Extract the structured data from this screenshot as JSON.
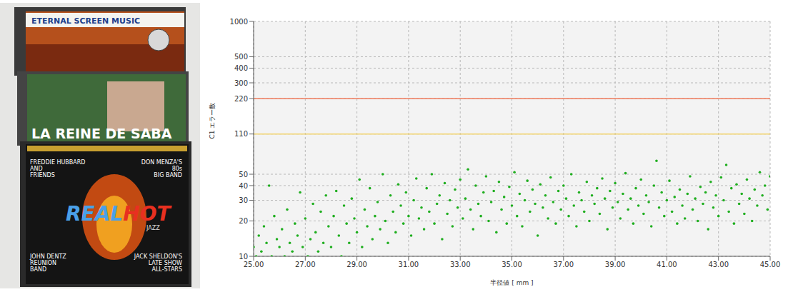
{
  "chart_data": {
    "type": "scatter",
    "xlabel": "半径値 [ mm ]",
    "ylabel": "C1 エラー数",
    "log": "y",
    "grid": true,
    "color": "#1fae1f",
    "marker": "circle",
    "xlim": [
      25,
      45
    ],
    "xticks": [
      {
        "value": 25,
        "label": "25.00"
      },
      {
        "value": 27,
        "label": "27.00"
      },
      {
        "value": 29,
        "label": "29.00"
      },
      {
        "value": 31,
        "label": "31.00"
      },
      {
        "value": 33,
        "label": "33.00"
      },
      {
        "value": 35,
        "label": "35.00"
      },
      {
        "value": 37,
        "label": "37.00"
      },
      {
        "value": 39,
        "label": "39.00"
      },
      {
        "value": 41,
        "label": "41.00"
      },
      {
        "value": 43,
        "label": "43.00"
      },
      {
        "value": 45,
        "label": "45.00"
      }
    ],
    "ylim": [
      10,
      1000
    ],
    "yticks": [
      10,
      20,
      30,
      40,
      50,
      110,
      220,
      300,
      400,
      500,
      1000
    ],
    "reference_lines": [
      {
        "value": 220,
        "color": "#f07a5a"
      },
      {
        "value": 110,
        "color": "#f2d36b"
      }
    ],
    "x": [
      25,
      25.1,
      25.2,
      25.3,
      25.4,
      25.5,
      25.6,
      25.7,
      25.8,
      25.9,
      26,
      26.1,
      26.2,
      26.3,
      26.4,
      26.5,
      26.6,
      26.7,
      26.8,
      26.9,
      27,
      27.1,
      27.2,
      27.3,
      27.4,
      27.5,
      27.6,
      27.7,
      27.8,
      27.9,
      28,
      28.1,
      28.2,
      28.3,
      28.4,
      28.5,
      28.6,
      28.7,
      28.8,
      28.9,
      29,
      29.1,
      29.2,
      29.3,
      29.4,
      29.5,
      29.6,
      29.7,
      29.8,
      29.9,
      30,
      30.1,
      30.2,
      30.3,
      30.4,
      30.5,
      30.6,
      30.7,
      30.8,
      30.9,
      31,
      31.1,
      31.2,
      31.3,
      31.4,
      31.5,
      31.6,
      31.7,
      31.8,
      31.9,
      32,
      32.1,
      32.2,
      32.3,
      32.4,
      32.5,
      32.6,
      32.7,
      32.8,
      32.9,
      33,
      33.1,
      33.2,
      33.3,
      33.4,
      33.5,
      33.6,
      33.7,
      33.8,
      33.9,
      34,
      34.1,
      34.2,
      34.3,
      34.4,
      34.5,
      34.6,
      34.7,
      34.8,
      34.9,
      35,
      35.1,
      35.2,
      35.3,
      35.4,
      35.5,
      35.6,
      35.7,
      35.8,
      35.9,
      36,
      36.1,
      36.2,
      36.3,
      36.4,
      36.5,
      36.6,
      36.7,
      36.8,
      36.9,
      37,
      37.1,
      37.2,
      37.3,
      37.4,
      37.5,
      37.6,
      37.7,
      37.8,
      37.9,
      38,
      38.1,
      38.2,
      38.3,
      38.4,
      38.5,
      38.6,
      38.7,
      38.8,
      38.9,
      39,
      39.1,
      39.2,
      39.3,
      39.4,
      39.5,
      39.6,
      39.7,
      39.8,
      39.9,
      40,
      40.1,
      40.2,
      40.3,
      40.4,
      40.5,
      40.6,
      40.7,
      40.8,
      40.9,
      41,
      41.1,
      41.2,
      41.3,
      41.4,
      41.5,
      41.6,
      41.7,
      41.8,
      41.9,
      42,
      42.1,
      42.2,
      42.3,
      42.4,
      42.5,
      42.6,
      42.7,
      42.8,
      42.9,
      43,
      43.1,
      43.2,
      43.3,
      43.4,
      43.5,
      43.6,
      43.7,
      43.8,
      43.9,
      44,
      44.1,
      44.2,
      44.3,
      44.4,
      44.5,
      44.6,
      44.7,
      44.8,
      44.9,
      45
    ],
    "values": [
      12,
      10,
      15,
      11,
      18,
      13,
      40,
      10,
      22,
      14,
      12,
      17,
      10,
      25,
      13,
      11,
      19,
      15,
      35,
      12,
      21,
      10,
      14,
      28,
      16,
      11,
      24,
      13,
      33,
      18,
      12,
      22,
      36,
      15,
      10,
      27,
      19,
      13,
      31,
      21,
      16,
      45,
      12,
      25,
      18,
      38,
      14,
      22,
      29,
      17,
      50,
      20,
      13,
      33,
      24,
      16,
      41,
      27,
      19,
      35,
      22,
      15,
      30,
      46,
      21,
      26,
      17,
      38,
      24,
      50,
      19,
      28,
      33,
      14,
      42,
      23,
      30,
      18,
      37,
      26,
      45,
      21,
      31,
      55,
      25,
      17,
      40,
      28,
      22,
      35,
      48,
      20,
      29,
      36,
      16,
      43,
      25,
      32,
      19,
      39,
      27,
      52,
      22,
      34,
      18,
      30,
      44,
      24,
      37,
      28,
      15,
      41,
      26,
      33,
      21,
      47,
      29,
      19,
      36,
      25,
      40,
      31,
      22,
      50,
      27,
      18,
      35,
      30,
      24,
      43,
      20,
      33,
      28,
      38,
      23,
      46,
      31,
      17,
      36,
      26,
      42,
      29,
      21,
      34,
      51,
      25,
      31,
      19,
      38,
      27,
      45,
      23,
      33,
      29,
      18,
      40,
      65,
      26,
      35,
      22,
      30,
      44,
      24,
      32,
      19,
      37,
      27,
      21,
      34,
      48,
      25,
      31,
      20,
      39,
      28,
      35,
      17,
      43,
      26,
      33,
      22,
      47,
      30,
      60,
      24,
      38,
      19,
      41,
      28,
      34,
      23,
      45,
      31,
      20,
      37,
      27,
      52,
      33,
      40,
      25,
      48
    ]
  },
  "photo": {
    "covers": [
      {
        "title": "ETERNAL SCREEN MUSIC"
      },
      {
        "title": "LA REINE DE SABA"
      },
      {
        "title": [
          "REAL",
          "HOT"
        ],
        "subtitle": "JAZZ",
        "credits": [
          [
            "FREDDIE HUBBARD",
            "AND",
            "FRIENDS"
          ],
          [
            "DON MENZA'S",
            "80s",
            "BIG BAND"
          ],
          [
            "JOHN DENTZ",
            "REUNION",
            "BAND"
          ],
          [
            "JACK SHELDON'S",
            "LATE SHOW",
            "ALL-STARS"
          ]
        ]
      }
    ]
  }
}
